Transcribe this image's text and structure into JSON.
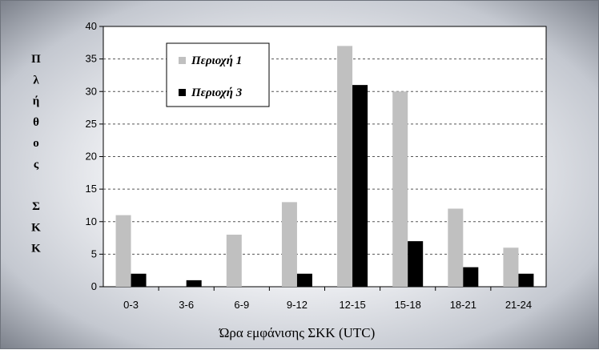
{
  "chart_data": {
    "type": "bar",
    "categories": [
      "0-3",
      "3-6",
      "6-9",
      "9-12",
      "12-15",
      "15-18",
      "18-21",
      "21-24"
    ],
    "series": [
      {
        "name": "Περιοχή 1",
        "values": [
          11,
          0,
          8,
          13,
          37,
          30,
          12,
          6
        ],
        "color": "#c0c0c0"
      },
      {
        "name": "Περιοχή 3",
        "values": [
          2,
          1,
          0,
          2,
          31,
          7,
          3,
          2
        ],
        "color": "#000000"
      }
    ],
    "xlabel": "Ώρα εμφάνισης ΣΚΚ  (UTC)",
    "ylabel_chars": [
      "Π",
      "λ",
      "ή",
      "θ",
      "ο",
      "ς",
      "",
      "Σ",
      "Κ",
      "Κ"
    ],
    "ylim": [
      0,
      40
    ],
    "yticks": [
      "0",
      "5",
      "10",
      "15",
      "20",
      "25",
      "30",
      "35",
      "40"
    ],
    "grid": true,
    "legend_position": "top-left-inside"
  }
}
